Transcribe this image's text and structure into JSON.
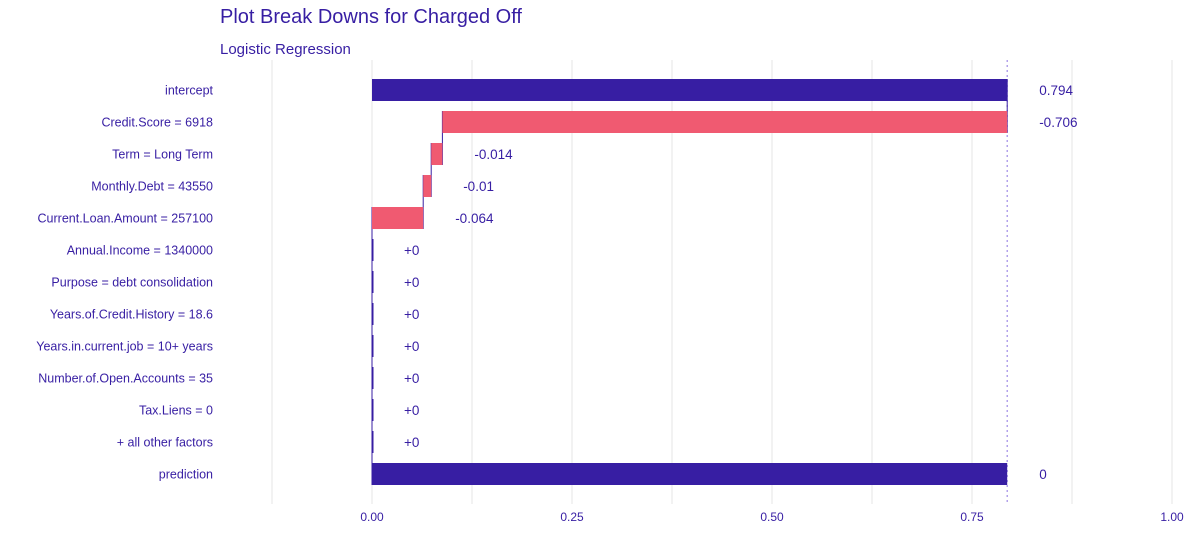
{
  "chart_data": {
    "type": "bar",
    "title": "Plot Break Downs for Charged Off",
    "subtitle": "Logistic Regression",
    "xlim": [
      -0.25,
      1.0
    ],
    "xticks": [
      0.0,
      0.25,
      0.5,
      0.75,
      1.0
    ],
    "xtick_labels": [
      "0.00",
      "0.25",
      "0.50",
      "0.75",
      "1.00"
    ],
    "reference_line": 0.794,
    "grid": true,
    "colors": {
      "negative": "#f05a71",
      "positive": "#8bdcbe",
      "prediction": "#371ea3",
      "text": "#371ea3",
      "connector": "#371ea3",
      "grid": "#e6e6e6"
    },
    "rows": [
      {
        "label": "intercept",
        "start": 0.0,
        "end": 0.794,
        "contribution": "0.794",
        "kind": "intercept"
      },
      {
        "label": "Credit.Score = 6918",
        "start": 0.794,
        "end": 0.088,
        "contribution": "-0.706",
        "kind": "negative"
      },
      {
        "label": "Term = Long Term",
        "start": 0.088,
        "end": 0.074,
        "contribution": "-0.014",
        "kind": "negative"
      },
      {
        "label": "Monthly.Debt = 43550",
        "start": 0.074,
        "end": 0.064,
        "contribution": "-0.01",
        "kind": "negative"
      },
      {
        "label": "Current.Loan.Amount = 257100",
        "start": 0.064,
        "end": 0.0,
        "contribution": "-0.064",
        "kind": "negative"
      },
      {
        "label": "Annual.Income = 1340000",
        "start": 0.0,
        "end": 0.0,
        "contribution": "+0",
        "kind": "zero"
      },
      {
        "label": "Purpose = debt consolidation",
        "start": 0.0,
        "end": 0.0,
        "contribution": "+0",
        "kind": "zero"
      },
      {
        "label": "Years.of.Credit.History = 18.6",
        "start": 0.0,
        "end": 0.0,
        "contribution": "+0",
        "kind": "zero"
      },
      {
        "label": "Years.in.current.job = 10+ years",
        "start": 0.0,
        "end": 0.0,
        "contribution": "+0",
        "kind": "zero"
      },
      {
        "label": "Number.of.Open.Accounts = 35",
        "start": 0.0,
        "end": 0.0,
        "contribution": "+0",
        "kind": "zero"
      },
      {
        "label": "Tax.Liens = 0",
        "start": 0.0,
        "end": 0.0,
        "contribution": "+0",
        "kind": "zero"
      },
      {
        "label": "+ all other factors",
        "start": 0.0,
        "end": 0.0,
        "contribution": "+0",
        "kind": "zero"
      },
      {
        "label": "prediction",
        "start": 0.0,
        "end": 0.794,
        "contribution": "0",
        "kind": "prediction"
      }
    ]
  }
}
